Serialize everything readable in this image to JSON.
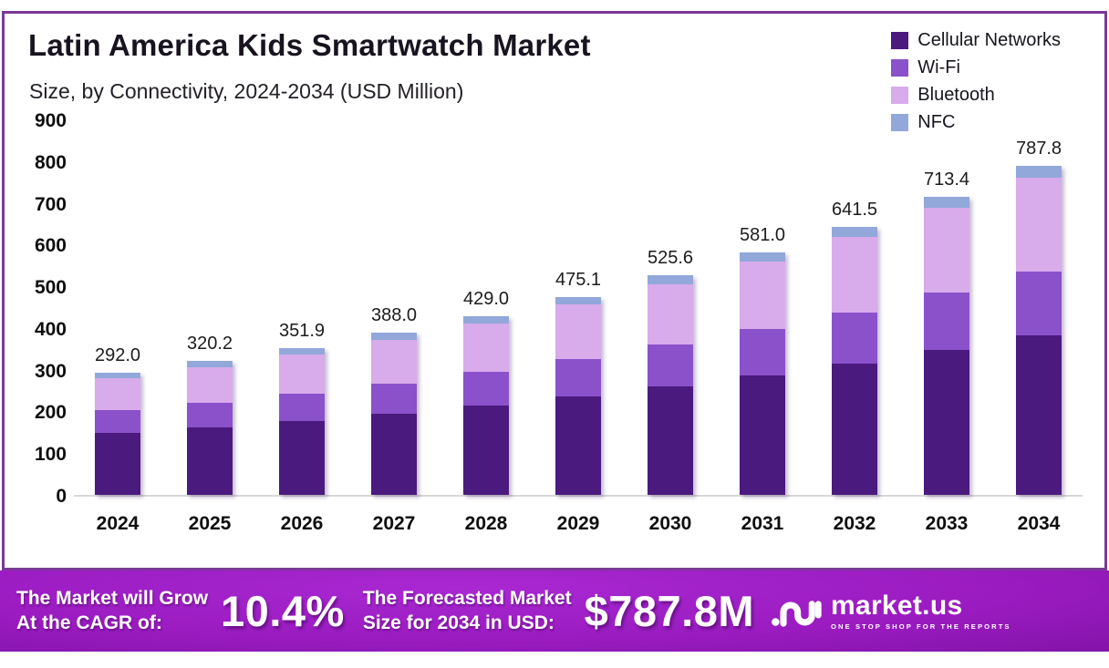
{
  "header": {
    "title": "Latin America Kids Smartwatch Market",
    "subtitle": "Size, by Connectivity, 2024-2034 (USD Million)"
  },
  "legend": [
    {
      "label": "Cellular Networks",
      "color": "#4a1a7e"
    },
    {
      "label": "Wi-Fi",
      "color": "#8b51cb"
    },
    {
      "label": "Bluetooth",
      "color": "#d8abeb"
    },
    {
      "label": "NFC",
      "color": "#92a7da"
    }
  ],
  "chart_data": {
    "type": "bar",
    "stacked": true,
    "title": "Latin America Kids Smartwatch Market",
    "subtitle": "Size, by Connectivity, 2024-2034 (USD Million)",
    "ylabel": "USD Million",
    "categories": [
      "2024",
      "2025",
      "2026",
      "2027",
      "2028",
      "2029",
      "2030",
      "2031",
      "2032",
      "2033",
      "2034"
    ],
    "series": [
      {
        "name": "Cellular Networks",
        "color": "#4a1a7e",
        "values": [
          148.3,
          161.9,
          177.1,
          194.4,
          213.9,
          235.9,
          259.7,
          285.8,
          314.1,
          347.6,
          382.1
        ]
      },
      {
        "name": "Wi-Fi",
        "color": "#8b51cb",
        "values": [
          54.0,
          59.6,
          65.8,
          72.9,
          81.1,
          90.3,
          100.4,
          111.6,
          123.8,
          138.4,
          153.6
        ]
      },
      {
        "name": "Bluetooth",
        "color": "#d8abeb",
        "values": [
          77.1,
          85.2,
          94.4,
          104.9,
          116.9,
          130.4,
          145.4,
          161.9,
          180.1,
          201.8,
          224.5
        ]
      },
      {
        "name": "NFC",
        "color": "#92a7da",
        "values": [
          12.6,
          13.5,
          14.6,
          15.8,
          17.1,
          18.5,
          20.1,
          21.7,
          23.5,
          25.6,
          27.6
        ]
      }
    ],
    "totals": [
      292.0,
      320.2,
      351.9,
      388.0,
      429.0,
      475.1,
      525.6,
      581.0,
      641.5,
      713.4,
      787.8
    ],
    "total_label_format": "one_decimal",
    "ylim": [
      0,
      900
    ],
    "yticks": [
      0,
      100,
      200,
      300,
      400,
      500,
      600,
      700,
      800,
      900
    ],
    "grid": false,
    "legend_position": "top-right"
  },
  "footer": {
    "cagr_label_line1": "The Market will Grow",
    "cagr_label_line2": "At the CAGR of:",
    "cagr_value": "10.4%",
    "forecast_label_line1": "The Forecasted Market",
    "forecast_label_line2": "Size for 2034 in USD:",
    "forecast_value": "$787.8M",
    "brand": {
      "name": "market.us",
      "tagline": "ONE STOP SHOP FOR THE REPORTS"
    }
  }
}
